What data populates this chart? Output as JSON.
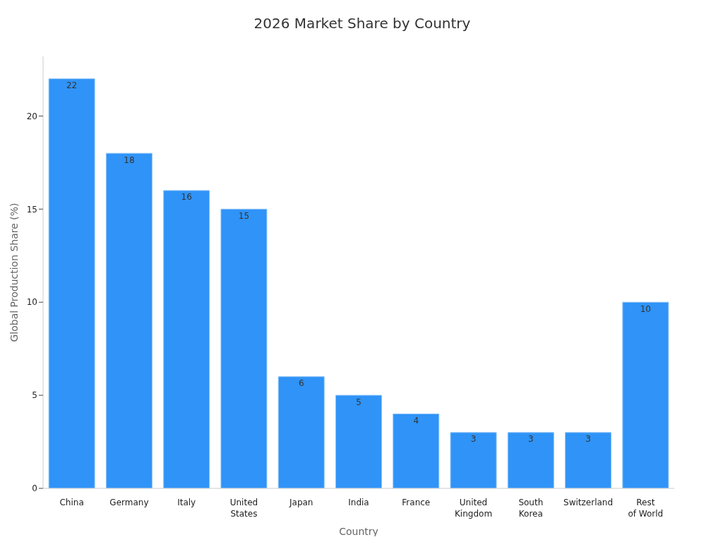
{
  "chart_data": {
    "type": "bar",
    "title": "2026 Market Share by Country",
    "xlabel": "Country",
    "ylabel": "Global Production Share (%)",
    "categories": [
      "China",
      "Germany",
      "Italy",
      "United States",
      "Japan",
      "India",
      "France",
      "United Kingdom",
      "South Korea",
      "Switzerland",
      "Rest of World"
    ],
    "values": [
      22,
      18,
      16,
      15,
      6,
      5,
      4,
      3,
      3,
      3,
      10
    ],
    "color": "#2f93f7",
    "ylim": [
      0,
      23.2
    ],
    "yticks": [
      0,
      5,
      10,
      15,
      20
    ],
    "grid": false,
    "legend": false,
    "data_labels": true
  }
}
